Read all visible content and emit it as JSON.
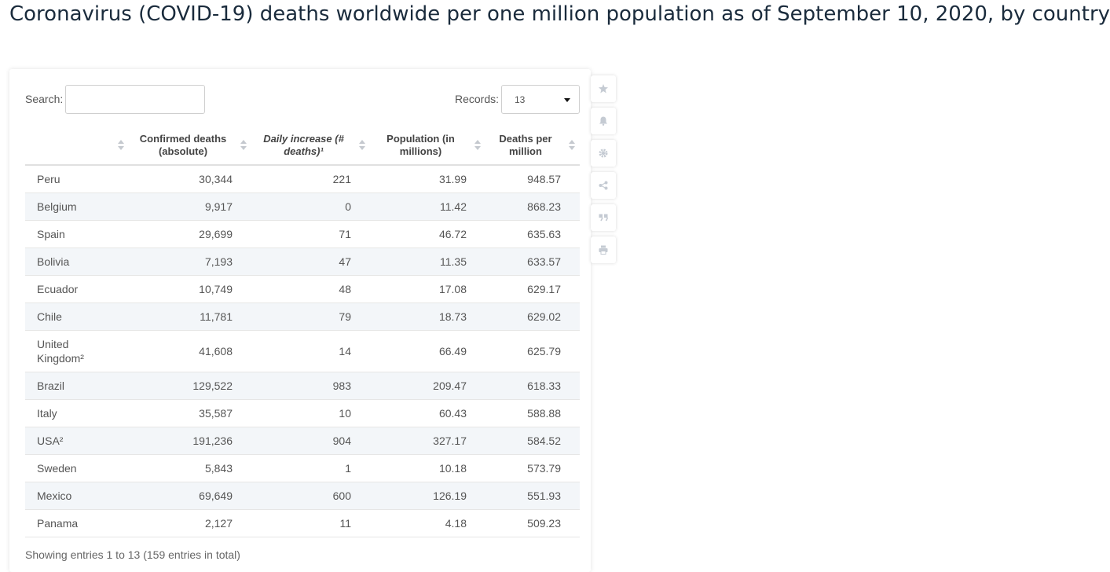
{
  "title": "Coronavirus (COVID-19) deaths worldwide per one million population as of September 10, 2020, by country",
  "search": {
    "label": "Search:",
    "value": ""
  },
  "records": {
    "label": "Records:",
    "selected": "13"
  },
  "footer": "Showing entries 1 to 13 (159 entries in total)",
  "icons": [
    "star-icon",
    "bell-icon",
    "gear-icon",
    "share-icon",
    "quote-icon",
    "print-icon"
  ],
  "chart_data": {
    "type": "table",
    "columns": [
      "",
      "Confirmed deaths (absolute)",
      "Daily increase (# deaths)¹",
      "Population (in millions)",
      "Deaths per million"
    ],
    "rows": [
      [
        "Peru",
        "30,344",
        "221",
        "31.99",
        "948.57"
      ],
      [
        "Belgium",
        "9,917",
        "0",
        "11.42",
        "868.23"
      ],
      [
        "Spain",
        "29,699",
        "71",
        "46.72",
        "635.63"
      ],
      [
        "Bolivia",
        "7,193",
        "47",
        "11.35",
        "633.57"
      ],
      [
        "Ecuador",
        "10,749",
        "48",
        "17.08",
        "629.17"
      ],
      [
        "Chile",
        "11,781",
        "79",
        "18.73",
        "629.02"
      ],
      [
        "United Kingdom²",
        "41,608",
        "14",
        "66.49",
        "625.79"
      ],
      [
        "Brazil",
        "129,522",
        "983",
        "209.47",
        "618.33"
      ],
      [
        "Italy",
        "35,587",
        "10",
        "60.43",
        "588.88"
      ],
      [
        "USA²",
        "191,236",
        "904",
        "327.17",
        "584.52"
      ],
      [
        "Sweden",
        "5,843",
        "1",
        "10.18",
        "573.79"
      ],
      [
        "Mexico",
        "69,649",
        "600",
        "126.19",
        "551.93"
      ],
      [
        "Panama",
        "2,127",
        "11",
        "4.18",
        "509.23"
      ]
    ]
  }
}
